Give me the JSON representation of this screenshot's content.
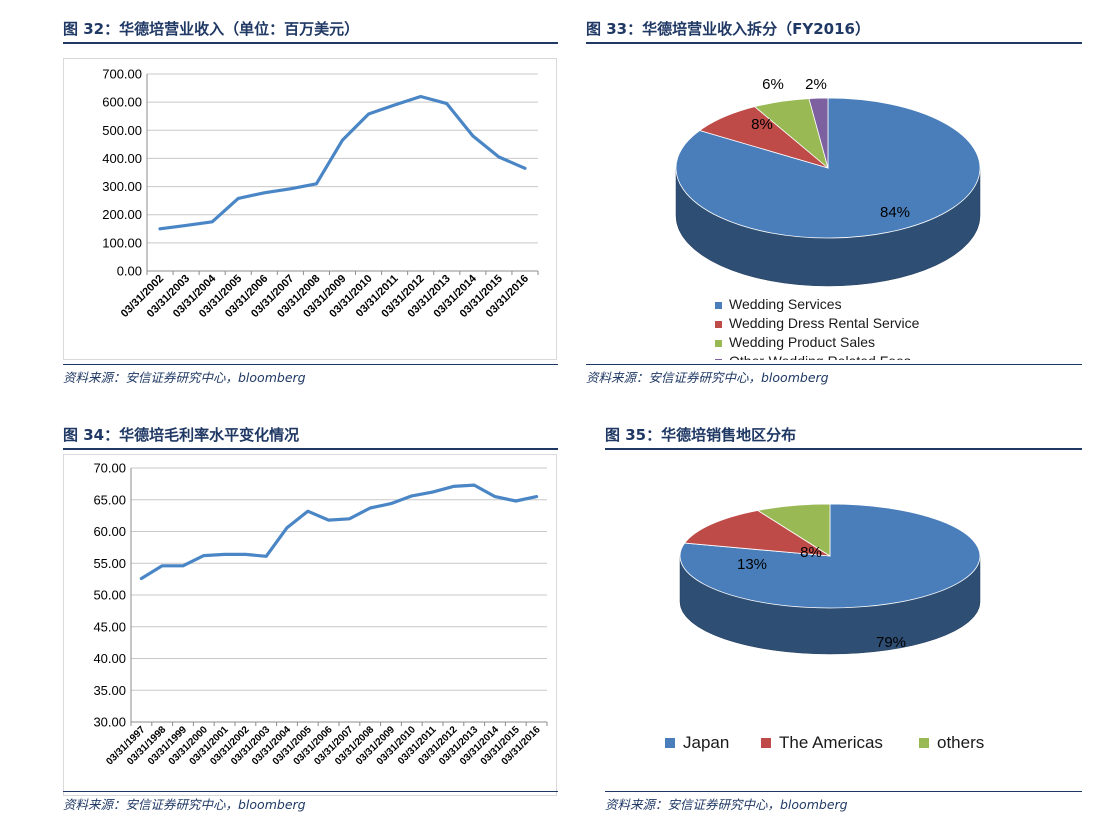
{
  "fig32": {
    "title": "图 32：华德培营业收入（单位：百万美元）",
    "source": "资料来源：安信证券研究中心，bloomberg",
    "chart_data": {
      "type": "line",
      "categories": [
        "03/31/2002",
        "03/31/2003",
        "03/31/2004",
        "03/31/2005",
        "03/31/2006",
        "03/31/2007",
        "03/31/2008",
        "03/31/2009",
        "03/31/2010",
        "03/31/2011",
        "03/31/2012",
        "03/31/2013",
        "03/31/2014",
        "03/31/2015",
        "03/31/2016"
      ],
      "yticks": [
        "0.00",
        "100.00",
        "200.00",
        "300.00",
        "400.00",
        "500.00",
        "600.00",
        "700.00"
      ],
      "ylim": [
        0,
        700
      ],
      "series": [
        {
          "values": [
            150,
            162,
            175,
            258,
            278,
            292,
            310,
            465,
            558,
            590,
            620,
            595,
            480,
            405,
            365
          ]
        }
      ],
      "color": "#4a86c5",
      "grid": true
    }
  },
  "fig33": {
    "title": "图 33：华德培营业收入拆分（FY2016）",
    "source": "资料来源：安信证券研究中心，bloomberg",
    "chart_data": {
      "type": "pie",
      "labels": [
        "Wedding Services",
        "Wedding Dress Rental Service",
        "Wedding Product Sales",
        "Other-Wedding Related Fees"
      ],
      "values": [
        84,
        8,
        6,
        2
      ],
      "data_labels": [
        "84%",
        "8%",
        "6%",
        "2%"
      ],
      "colors": [
        "#4a7ebb",
        "#be4b48",
        "#98b954",
        "#7d60a0"
      ],
      "legend_position": "bottom"
    }
  },
  "fig34": {
    "title": "图 34：华德培毛利率水平变化情况",
    "source": "资料来源：安信证券研究中心，bloomberg",
    "chart_data": {
      "type": "line",
      "categories": [
        "03/31/1997",
        "03/31/1998",
        "03/31/1999",
        "03/31/2000",
        "03/31/2001",
        "03/31/2002",
        "03/31/2003",
        "03/31/2004",
        "03/31/2005",
        "03/31/2006",
        "03/31/2007",
        "03/31/2008",
        "03/31/2009",
        "03/31/2010",
        "03/31/2011",
        "03/31/2012",
        "03/31/2013",
        "03/31/2014",
        "03/31/2015",
        "03/31/2016"
      ],
      "yticks": [
        "30.00",
        "35.00",
        "40.00",
        "45.00",
        "50.00",
        "55.00",
        "60.00",
        "65.00",
        "70.00"
      ],
      "ylim": [
        30,
        70
      ],
      "series": [
        {
          "values": [
            52.6,
            54.6,
            54.6,
            56.2,
            56.4,
            56.4,
            56.1,
            60.6,
            63.2,
            61.8,
            62.0,
            63.7,
            64.4,
            65.6,
            66.2,
            67.1,
            67.3,
            65.5,
            64.8,
            65.5
          ]
        }
      ],
      "color": "#4a86c5",
      "grid": true
    }
  },
  "fig35": {
    "title": "图 35：华德培销售地区分布",
    "source": "资料来源：安信证券研究中心，bloomberg",
    "chart_data": {
      "type": "pie",
      "labels": [
        "Japan",
        "The Americas",
        "others"
      ],
      "values": [
        79,
        13,
        8
      ],
      "data_labels": [
        "79%",
        "13%",
        "8%"
      ],
      "colors": [
        "#4a7ebb",
        "#be4b48",
        "#98b954"
      ],
      "legend_position": "bottom"
    }
  }
}
